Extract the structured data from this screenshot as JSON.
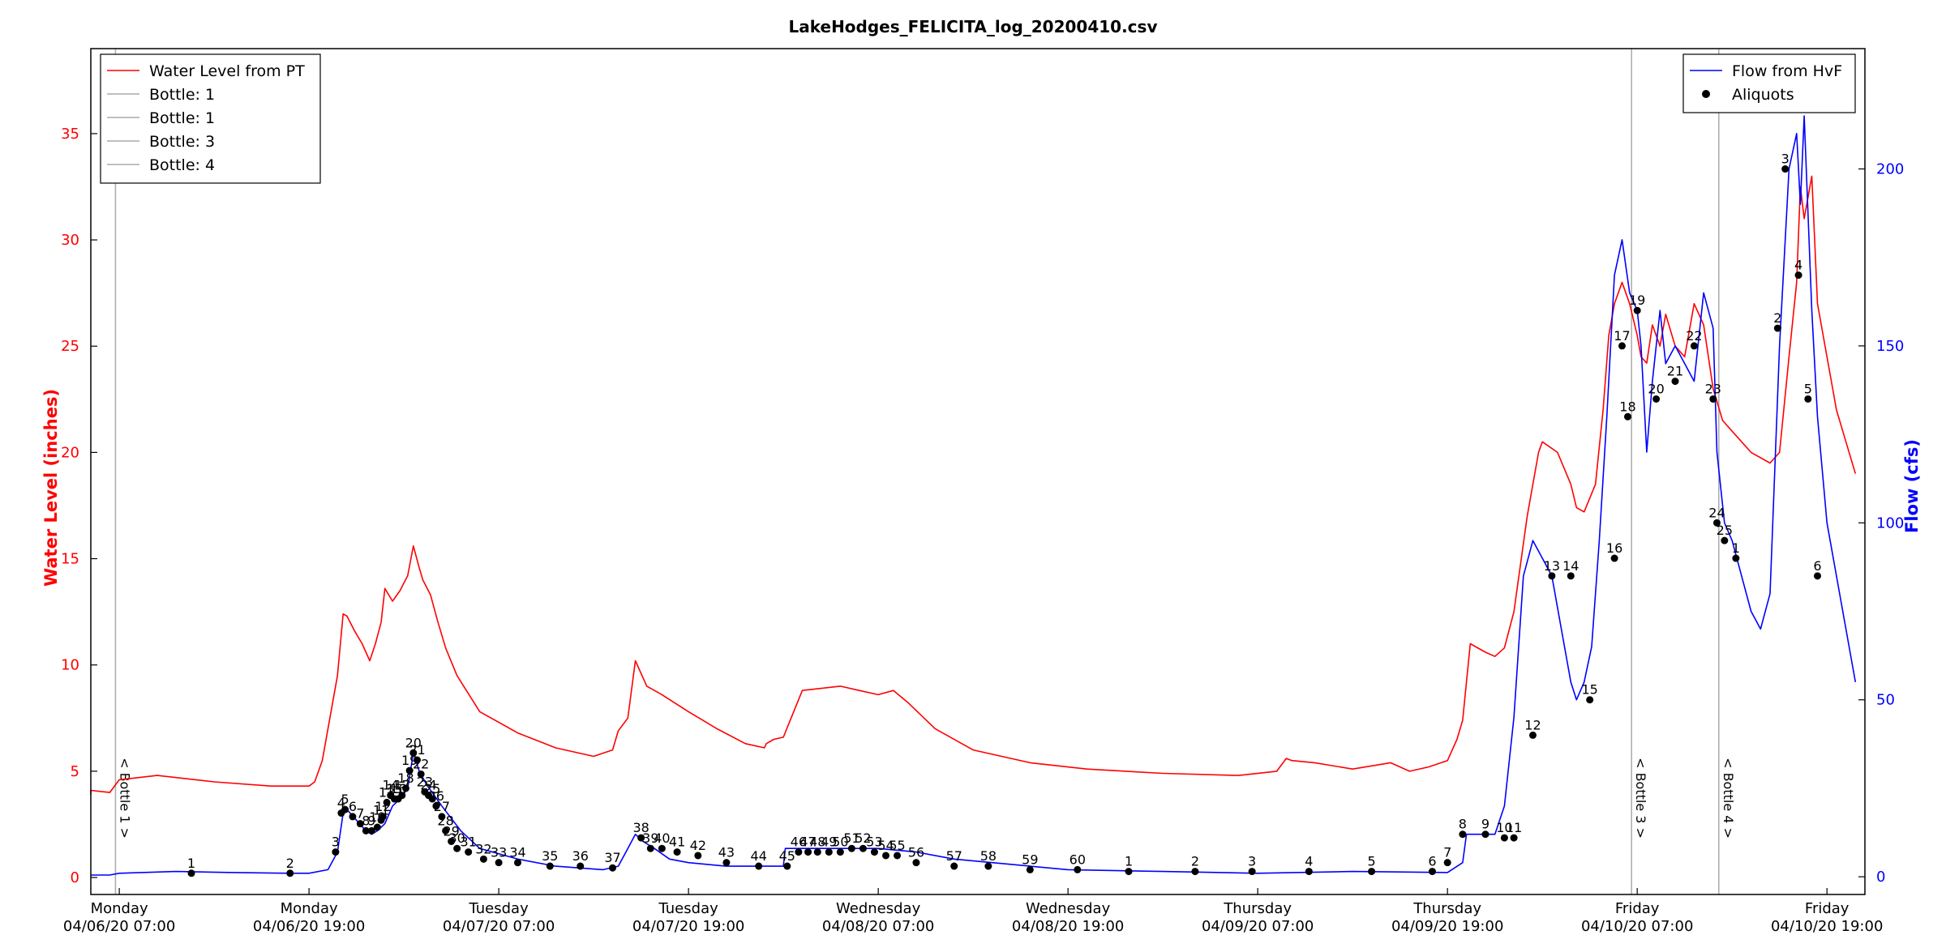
{
  "chart_data": {
    "type": "line",
    "title": "LakeHodges_FELICITA_log_20200410.csv",
    "ylabel_left": "Water Level (inches)",
    "ylabel_right": "Flow (cfs)",
    "left_color": "#ff0000",
    "right_color": "#0000ff",
    "ylim_left": [
      -0.8,
      39
    ],
    "ylim_right": [
      -5,
      234
    ],
    "left_ticks": [
      0,
      5,
      10,
      15,
      20,
      25,
      30,
      35
    ],
    "right_ticks": [
      0,
      50,
      100,
      150,
      200
    ],
    "xlim": [
      -0.15,
      9.2
    ],
    "x_ticks": [
      {
        "x": 0.0,
        "day": "Monday",
        "date": "04/06/20 07:00"
      },
      {
        "x": 1.0,
        "day": "Monday",
        "date": "04/06/20 19:00"
      },
      {
        "x": 2.0,
        "day": "Tuesday",
        "date": "04/07/20 07:00"
      },
      {
        "x": 3.0,
        "day": "Tuesday",
        "date": "04/07/20 19:00"
      },
      {
        "x": 4.0,
        "day": "Wednesday",
        "date": "04/08/20 07:00"
      },
      {
        "x": 5.0,
        "day": "Wednesday",
        "date": "04/08/20 19:00"
      },
      {
        "x": 6.0,
        "day": "Thursday",
        "date": "04/09/20 07:00"
      },
      {
        "x": 7.0,
        "day": "Thursday",
        "date": "04/09/20 19:00"
      },
      {
        "x": 8.0,
        "day": "Friday",
        "date": "04/10/20 07:00"
      },
      {
        "x": 9.0,
        "day": "Friday",
        "date": "04/10/20 19:00"
      }
    ],
    "legend_left": [
      {
        "label": "Water Level from PT",
        "color": "#ff0000"
      },
      {
        "label": "Bottle: 1",
        "color": "#aaaaaa"
      },
      {
        "label": "Bottle: 1",
        "color": "#aaaaaa"
      },
      {
        "label": "Bottle: 3",
        "color": "#aaaaaa"
      },
      {
        "label": "Bottle: 4",
        "color": "#aaaaaa"
      }
    ],
    "legend_right": [
      {
        "label": "Flow from HvF",
        "color": "#0000ff",
        "kind": "line"
      },
      {
        "label": "Aliquots",
        "color": "#000000",
        "kind": "dot"
      }
    ],
    "bottle_markers": [
      {
        "x": -0.02,
        "label": "< Bottle 1 >"
      },
      {
        "x": 7.97,
        "label": "< Bottle 3 >"
      },
      {
        "x": 8.43,
        "label": "< Bottle 4 >"
      }
    ],
    "series": [
      {
        "name": "Water Level from PT",
        "axis": "left",
        "x": [
          -0.35,
          -0.2,
          -0.05,
          0.0,
          0.2,
          0.5,
          0.8,
          1.0,
          1.03,
          1.07,
          1.1,
          1.15,
          1.18,
          1.2,
          1.24,
          1.28,
          1.32,
          1.35,
          1.38,
          1.4,
          1.44,
          1.48,
          1.52,
          1.55,
          1.58,
          1.6,
          1.64,
          1.68,
          1.72,
          1.78,
          1.9,
          2.1,
          2.3,
          2.5,
          2.6,
          2.63,
          2.68,
          2.72,
          2.78,
          2.86,
          3.0,
          3.15,
          3.3,
          3.4,
          3.41,
          3.45,
          3.5,
          3.6,
          3.7,
          3.8,
          3.9,
          4.0,
          4.08,
          4.16,
          4.3,
          4.5,
          4.8,
          5.1,
          5.5,
          5.9,
          6.1,
          6.15,
          6.18,
          6.3,
          6.5,
          6.7,
          6.75,
          6.8,
          6.9,
          7.0,
          7.05,
          7.08,
          7.12,
          7.2,
          7.25,
          7.3,
          7.35,
          7.42,
          7.48,
          7.5,
          7.58,
          7.65,
          7.68,
          7.72,
          7.78,
          7.82,
          7.85,
          7.88,
          7.92,
          7.96,
          8.0,
          8.02,
          8.05,
          8.08,
          8.12,
          8.15,
          8.2,
          8.25,
          8.3,
          8.35,
          8.4,
          8.45,
          8.5,
          8.6,
          8.7,
          8.75,
          8.8,
          8.84,
          8.86,
          8.88,
          8.92,
          8.95,
          9.0,
          9.05,
          9.1,
          9.15
        ],
        "y": [
          3.9,
          4.1,
          4.0,
          4.6,
          4.8,
          4.5,
          4.3,
          4.3,
          4.5,
          5.5,
          7.0,
          9.5,
          12.4,
          12.3,
          11.6,
          11.0,
          10.2,
          11.0,
          12.0,
          13.6,
          13.0,
          13.5,
          14.2,
          15.6,
          14.6,
          14.0,
          13.3,
          12.0,
          10.8,
          9.5,
          7.8,
          6.8,
          6.1,
          5.7,
          6.0,
          6.9,
          7.5,
          10.2,
          9.0,
          8.6,
          7.8,
          7.0,
          6.3,
          6.1,
          6.3,
          6.5,
          6.6,
          8.8,
          8.9,
          9.0,
          8.8,
          8.6,
          8.8,
          8.2,
          7.0,
          6.0,
          5.4,
          5.1,
          4.9,
          4.8,
          5.0,
          5.6,
          5.5,
          5.4,
          5.1,
          5.4,
          5.2,
          5.0,
          5.2,
          5.5,
          6.5,
          7.4,
          11.0,
          10.6,
          10.4,
          10.8,
          12.5,
          17.0,
          20.0,
          20.5,
          20.0,
          18.5,
          17.4,
          17.2,
          18.5,
          22.0,
          25.5,
          27.0,
          28.0,
          27.0,
          25.5,
          24.5,
          24.2,
          26.0,
          25.0,
          26.5,
          25.0,
          24.5,
          27.0,
          26.0,
          23.0,
          21.5,
          21.0,
          20.0,
          19.5,
          20.0,
          24.5,
          28.0,
          32.5,
          31.0,
          33.0,
          27.0,
          24.5,
          22.0,
          20.5,
          19.0
        ]
      },
      {
        "name": "Flow from HvF",
        "axis": "right",
        "x": [
          -0.35,
          -0.05,
          0.0,
          0.3,
          0.6,
          0.9,
          1.0,
          1.1,
          1.15,
          1.18,
          1.2,
          1.25,
          1.3,
          1.33,
          1.36,
          1.4,
          1.44,
          1.48,
          1.52,
          1.55,
          1.58,
          1.62,
          1.66,
          1.7,
          1.8,
          1.9,
          2.1,
          2.3,
          2.55,
          2.63,
          2.68,
          2.72,
          2.76,
          2.82,
          2.9,
          3.0,
          3.2,
          3.4,
          3.5,
          3.51,
          3.6,
          3.8,
          4.0,
          4.2,
          4.4,
          4.6,
          5.0,
          5.5,
          6.0,
          6.5,
          7.0,
          7.08,
          7.1,
          7.15,
          7.2,
          7.25,
          7.3,
          7.35,
          7.4,
          7.45,
          7.5,
          7.55,
          7.6,
          7.65,
          7.68,
          7.72,
          7.76,
          7.8,
          7.84,
          7.88,
          7.92,
          7.96,
          8.0,
          8.02,
          8.05,
          8.08,
          8.12,
          8.15,
          8.2,
          8.25,
          8.3,
          8.35,
          8.4,
          8.42,
          8.46,
          8.5,
          8.55,
          8.6,
          8.65,
          8.7,
          8.75,
          8.8,
          8.84,
          8.86,
          8.88,
          8.92,
          8.95,
          9.0,
          9.05,
          9.1,
          9.15
        ],
        "y": [
          0.5,
          0.5,
          1.0,
          1.5,
          1.2,
          1.0,
          1.0,
          2.0,
          7.0,
          18.0,
          19.0,
          16.0,
          13.0,
          12.0,
          13.0,
          15.0,
          20.0,
          22.0,
          25.0,
          35.0,
          30.0,
          26.0,
          23.0,
          20.0,
          13.0,
          8.0,
          5.0,
          3.0,
          2.0,
          3.0,
          8.0,
          12.0,
          10.0,
          8.0,
          5.0,
          4.0,
          3.0,
          3.0,
          3.0,
          8.0,
          8.0,
          8.0,
          8.0,
          7.0,
          5.0,
          4.0,
          2.0,
          1.5,
          1.0,
          1.5,
          1.2,
          4.0,
          12.0,
          12.0,
          12.0,
          12.0,
          20.0,
          45.0,
          85.0,
          95.0,
          90.0,
          85.0,
          70.0,
          55.0,
          50.0,
          55.0,
          65.0,
          95.0,
          130.0,
          170.0,
          180.0,
          165.0,
          160.0,
          150.0,
          120.0,
          140.0,
          160.0,
          145.0,
          150.0,
          145.0,
          140.0,
          165.0,
          155.0,
          120.0,
          100.0,
          95.0,
          85.0,
          75.0,
          70.0,
          80.0,
          150.0,
          200.0,
          210.0,
          190.0,
          215.0,
          160.0,
          130.0,
          100.0,
          85.0,
          70.0,
          55.0
        ]
      },
      {
        "name": "Aliquots",
        "axis": "right",
        "x": [
          0.38,
          0.9,
          1.14,
          1.17,
          1.19,
          1.23,
          1.27,
          1.3,
          1.33,
          1.36,
          1.38,
          1.39,
          1.41,
          1.43,
          1.45,
          1.47,
          1.49,
          1.51,
          1.53,
          1.55,
          1.57,
          1.59,
          1.61,
          1.63,
          1.65,
          1.67,
          1.7,
          1.72,
          1.75,
          1.78,
          1.84,
          1.92,
          2.0,
          2.1,
          2.27,
          2.43,
          2.6,
          2.75,
          2.8,
          2.86,
          2.94,
          3.05,
          3.2,
          3.37,
          3.52,
          3.58,
          3.63,
          3.68,
          3.74,
          3.8,
          3.86,
          3.92,
          3.98,
          4.04,
          4.1,
          4.2,
          4.4,
          4.58,
          4.8,
          5.05,
          5.32,
          5.67,
          5.97,
          6.27,
          6.6,
          6.92,
          7.0,
          7.08,
          7.2,
          7.3,
          7.35,
          7.45,
          7.55,
          7.65,
          7.75,
          7.88,
          7.92,
          7.95,
          8.0,
          8.1,
          8.2,
          8.3,
          8.4,
          8.42,
          8.46,
          8.52,
          8.74,
          8.78,
          8.85,
          8.9,
          8.95
        ],
        "y": [
          1.0,
          1.0,
          7.0,
          18.0,
          19.0,
          17.0,
          15.0,
          13.0,
          13.0,
          14.0,
          16.0,
          17.0,
          21.0,
          23.0,
          22.0,
          22.0,
          23.0,
          25.0,
          30.0,
          35.0,
          33.0,
          29.0,
          24.0,
          23.0,
          22.0,
          20.0,
          17.0,
          13.0,
          10.0,
          8.0,
          7.0,
          5.0,
          4.0,
          4.0,
          3.0,
          3.0,
          2.5,
          11.0,
          8.0,
          8.0,
          7.0,
          6.0,
          4.0,
          3.0,
          3.0,
          7.0,
          7.0,
          7.0,
          7.0,
          7.0,
          8.0,
          8.0,
          7.0,
          6.0,
          6.0,
          4.0,
          3.0,
          3.0,
          2.0,
          2.0,
          1.5,
          1.5,
          1.5,
          1.5,
          1.5,
          1.5,
          4.0,
          12.0,
          12.0,
          11.0,
          11.0,
          40.0,
          85.0,
          85.0,
          50.0,
          90.0,
          150.0,
          130.0,
          160.0,
          135.0,
          140.0,
          150.0,
          135.0,
          100.0,
          95.0,
          90.0,
          155.0,
          200.0,
          170.0,
          135.0,
          85.0
        ],
        "labels": [
          "1",
          "2",
          "3",
          "4",
          "5",
          "6",
          "7",
          "8",
          "9",
          "10",
          "11",
          "12",
          "13",
          "14",
          "15",
          "16",
          "17",
          "18",
          "19",
          "20",
          "21",
          "22",
          "23",
          "24",
          "25",
          "26",
          "27",
          "28",
          "29",
          "30",
          "31",
          "32",
          "33",
          "34",
          "35",
          "36",
          "37",
          "38",
          "39",
          "40",
          "41",
          "42",
          "43",
          "44",
          "45",
          "46",
          "47",
          "48",
          "49",
          "50",
          "51",
          "52",
          "53",
          "54",
          "55",
          "56",
          "57",
          "58",
          "59",
          "60",
          "1",
          "2",
          "3",
          "4",
          "5",
          "6",
          "7",
          "8",
          "9",
          "10",
          "11",
          "12",
          "13",
          "14",
          "15",
          "16",
          "17",
          "18",
          "19",
          "20",
          "21",
          "22",
          "23",
          "24",
          "25",
          "1",
          "2",
          "3",
          "4",
          "5",
          "6"
        ]
      }
    ]
  }
}
